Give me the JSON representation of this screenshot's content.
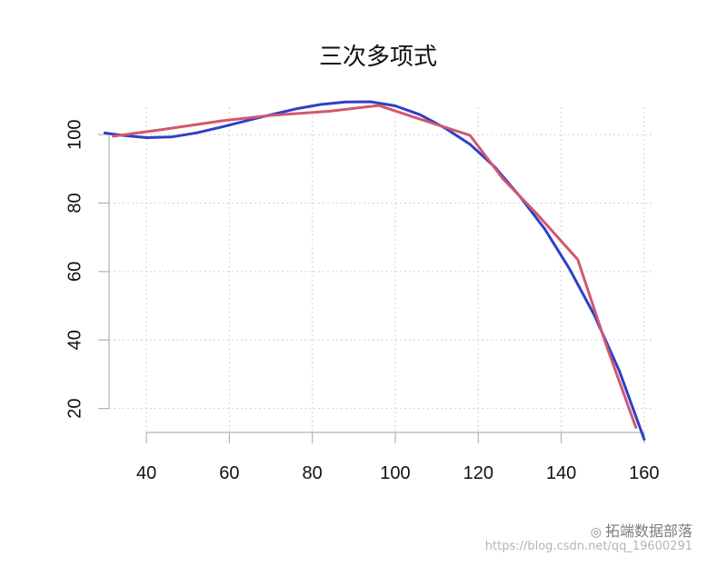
{
  "chart_data": {
    "type": "line",
    "title": "三次多项式",
    "xlabel": "",
    "ylabel": "",
    "xlim": [
      31,
      162
    ],
    "ylim": [
      13,
      108
    ],
    "x_ticks": [
      40,
      60,
      80,
      100,
      120,
      140,
      160
    ],
    "y_ticks": [
      20,
      40,
      60,
      80,
      100
    ],
    "grid": true,
    "series": [
      {
        "color": "#2f3fc6",
        "x": [
          30,
          34,
          40,
          46,
          52,
          58,
          64,
          70,
          76,
          82,
          88,
          94,
          100,
          106,
          112,
          118,
          124,
          130,
          136,
          142,
          148,
          154,
          160
        ],
        "values": [
          100.5,
          99.8,
          99.1,
          99.3,
          100.5,
          102.2,
          104.0,
          105.8,
          107.5,
          108.8,
          109.5,
          109.6,
          108.4,
          105.8,
          101.9,
          97.2,
          90.5,
          82.0,
          72.5,
          60.8,
          47.2,
          31.0,
          11.0
        ]
      },
      {
        "color": "#d05870",
        "x": [
          32,
          44,
          58,
          70,
          84,
          96,
          106,
          118,
          126,
          134,
          144,
          151,
          158
        ],
        "values": [
          99.5,
          101.5,
          104.0,
          105.6,
          106.8,
          108.5,
          104.5,
          99.8,
          87.0,
          77.0,
          63.5,
          38.0,
          14.5
        ]
      }
    ]
  },
  "watermark": {
    "brand": "拓端数据部落",
    "url": "https://blog.csdn.net/qq_19600291"
  }
}
